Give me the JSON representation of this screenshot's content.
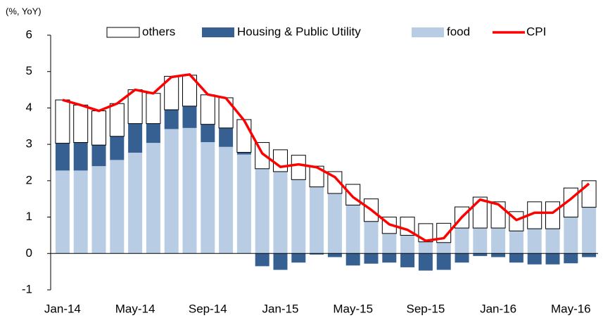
{
  "chart_data": {
    "type": "bar",
    "y_axis_label": "(%, YoY)",
    "categories": [
      "Jan-14",
      null,
      null,
      null,
      "May-14",
      null,
      null,
      null,
      "Sep-14",
      null,
      null,
      null,
      "Jan-15",
      null,
      null,
      null,
      "May-15",
      null,
      null,
      null,
      "Sep-15",
      null,
      null,
      null,
      "Jan-16",
      null,
      null,
      null,
      "May-16",
      null
    ],
    "series": [
      {
        "name": "food",
        "color": "#b8cce4",
        "values": [
          2.28,
          2.28,
          2.4,
          2.57,
          2.77,
          3.04,
          3.42,
          3.45,
          3.06,
          2.93,
          2.72,
          2.33,
          2.25,
          2.03,
          1.83,
          1.65,
          1.33,
          0.88,
          0.55,
          0.5,
          0.32,
          0.3,
          0.7,
          0.7,
          0.7,
          0.62,
          0.68,
          0.68,
          1.0,
          1.27
        ]
      },
      {
        "name": "Housing & Public Utility",
        "color": "#366092",
        "values": [
          0.75,
          0.77,
          0.58,
          0.65,
          0.8,
          0.53,
          0.53,
          0.6,
          0.49,
          0.52,
          0.06,
          -0.35,
          -0.45,
          -0.25,
          -0.03,
          -0.1,
          -0.33,
          -0.28,
          -0.25,
          -0.38,
          -0.47,
          -0.45,
          -0.25,
          -0.07,
          -0.1,
          -0.25,
          -0.3,
          -0.3,
          -0.27,
          -0.1
        ]
      },
      {
        "name": "others",
        "color": "#ffffff",
        "values": [
          1.19,
          1.03,
          0.94,
          0.9,
          0.93,
          0.83,
          0.92,
          0.85,
          0.81,
          0.83,
          0.9,
          0.72,
          0.6,
          0.67,
          0.57,
          0.6,
          0.57,
          0.62,
          0.45,
          0.5,
          0.5,
          0.53,
          0.58,
          0.85,
          0.72,
          0.53,
          0.74,
          0.74,
          0.8,
          0.73
        ]
      },
      {
        "name": "CPI",
        "color": "#ff0000",
        "type": "line",
        "values": [
          4.22,
          4.08,
          3.92,
          4.12,
          4.5,
          4.4,
          4.85,
          4.92,
          4.37,
          4.27,
          3.66,
          2.75,
          2.38,
          2.45,
          2.37,
          2.1,
          1.55,
          1.2,
          0.8,
          0.65,
          0.35,
          0.42,
          1.0,
          1.48,
          1.35,
          0.92,
          1.12,
          1.12,
          1.5,
          1.92
        ]
      }
    ],
    "legend_order": [
      "others",
      "Housing & Public Utility",
      "food",
      "CPI"
    ],
    "ylim": [
      -1,
      6
    ],
    "yticks": [
      -1,
      0,
      1,
      2,
      3,
      4,
      5,
      6
    ],
    "grid": false
  }
}
